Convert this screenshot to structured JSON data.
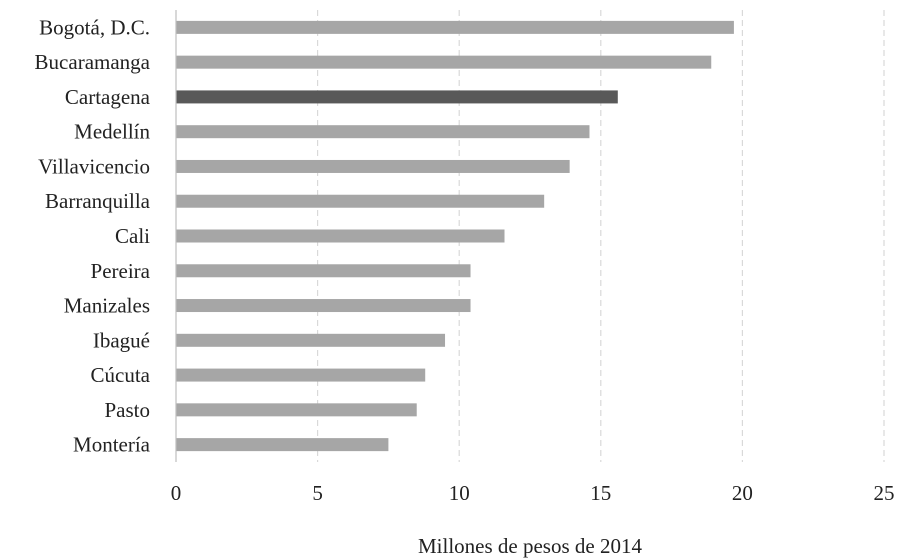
{
  "chart_data": {
    "type": "bar",
    "orientation": "horizontal",
    "categories": [
      "Bogotá, D.C.",
      "Bucaramanga",
      "Cartagena",
      "Medellín",
      "Villavicencio",
      "Barranquilla",
      "Cali",
      "Pereira",
      "Manizales",
      "Ibagué",
      "Cúcuta",
      "Pasto",
      "Montería"
    ],
    "values": [
      19.7,
      18.9,
      15.6,
      14.6,
      13.9,
      13.0,
      11.6,
      10.4,
      10.4,
      9.5,
      8.8,
      8.5,
      7.5
    ],
    "highlight_index": 2,
    "xlabel": "Millones de pesos de 2014",
    "xlim": [
      0,
      25
    ],
    "xticks": [
      "0",
      "5",
      "10",
      "15",
      "20",
      "25"
    ],
    "grid": "vertical dashed",
    "colors": {
      "bar": "#a6a6a6",
      "highlight": "#595959",
      "grid": "#d9d9d9",
      "axis": "#bfbfbf"
    }
  }
}
